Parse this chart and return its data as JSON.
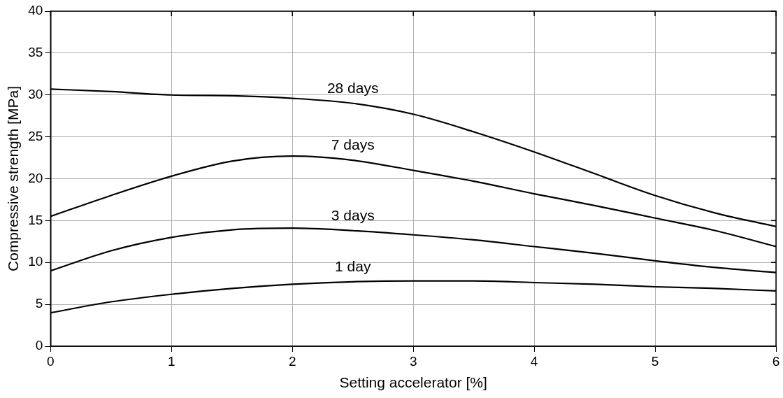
{
  "chart_data": {
    "type": "line",
    "xlabel": "Setting accelerator [%]",
    "ylabel": "Compressive strength [MPa]",
    "x": [
      0,
      0.5,
      1,
      1.5,
      2,
      2.5,
      3,
      3.5,
      4,
      4.5,
      5,
      5.5,
      6
    ],
    "series": [
      {
        "name": "28 days",
        "color": "#000000",
        "values": [
          30.7,
          30.4,
          30.0,
          29.9,
          29.6,
          29.0,
          27.7,
          25.6,
          23.2,
          20.6,
          18.0,
          15.9,
          14.3
        ]
      },
      {
        "name": "7 days",
        "color": "#000000",
        "values": [
          15.5,
          18.0,
          20.3,
          22.1,
          22.7,
          22.2,
          21.0,
          19.7,
          18.2,
          16.8,
          15.3,
          13.8,
          11.9
        ]
      },
      {
        "name": "3 days",
        "color": "#000000",
        "values": [
          9.0,
          11.4,
          13.0,
          13.9,
          14.1,
          13.8,
          13.3,
          12.7,
          11.9,
          11.1,
          10.2,
          9.4,
          8.8
        ]
      },
      {
        "name": "1 day",
        "color": "#000000",
        "values": [
          4.0,
          5.3,
          6.2,
          6.9,
          7.4,
          7.7,
          7.8,
          7.8,
          7.6,
          7.4,
          7.1,
          6.9,
          6.6
        ]
      }
    ],
    "xlim": [
      0,
      6
    ],
    "xticks": [
      0,
      1,
      2,
      3,
      4,
      5,
      6
    ],
    "ylim": [
      0,
      40
    ],
    "yticks": [
      0,
      5,
      10,
      15,
      20,
      25,
      30,
      35,
      40
    ],
    "grid": true,
    "legend": false,
    "marker": "none",
    "line_style": "solid"
  }
}
